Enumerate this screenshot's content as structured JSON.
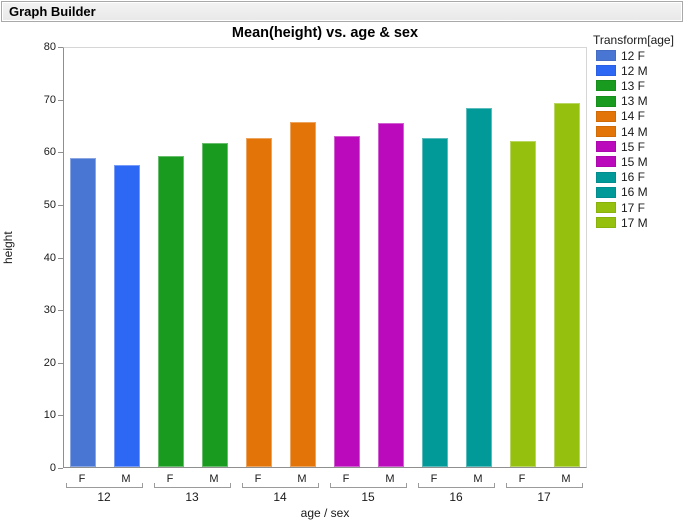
{
  "window": {
    "title": "Graph Builder"
  },
  "chart_data": {
    "type": "bar",
    "title": "Mean(height) vs. age & sex",
    "xlabel": "age / sex",
    "ylabel": "height",
    "ylim": [
      0,
      80
    ],
    "yticks": [
      0,
      10,
      20,
      30,
      40,
      50,
      60,
      70,
      80
    ],
    "grid": "off",
    "legend_position": "right",
    "categories": [
      "12 F",
      "12 M",
      "13 F",
      "13 M",
      "14 F",
      "14 M",
      "15 F",
      "15 M",
      "16 F",
      "16 M",
      "17 F",
      "17 M"
    ],
    "values": [
      58.7,
      57.4,
      59.1,
      61.5,
      62.6,
      65.5,
      63.0,
      65.4,
      62.6,
      68.2,
      62.0,
      69.1
    ],
    "colors": [
      "#4A76D3",
      "#2D68F4",
      "#199B1F",
      "#199B1F",
      "#E27408",
      "#E27408",
      "#BB0ABB",
      "#BB0ABB",
      "#029999",
      "#029999",
      "#95C00E",
      "#95C00E"
    ],
    "group_labels": [
      "12",
      "13",
      "14",
      "15",
      "16",
      "17"
    ],
    "sex_labels": [
      "F",
      "M"
    ],
    "legend": {
      "title": "Transform[age]",
      "items": [
        {
          "label": "12 F",
          "color": "#4A76D3"
        },
        {
          "label": "12 M",
          "color": "#2D68F4"
        },
        {
          "label": "13 F",
          "color": "#199B1F"
        },
        {
          "label": "13 M",
          "color": "#199B1F"
        },
        {
          "label": "14 F",
          "color": "#E27408"
        },
        {
          "label": "14 M",
          "color": "#E27408"
        },
        {
          "label": "15 F",
          "color": "#BB0ABB"
        },
        {
          "label": "15 M",
          "color": "#BB0ABB"
        },
        {
          "label": "16 F",
          "color": "#029999"
        },
        {
          "label": "16 M",
          "color": "#029999"
        },
        {
          "label": "17 F",
          "color": "#95C00E"
        },
        {
          "label": "17 M",
          "color": "#95C00E"
        }
      ]
    }
  }
}
